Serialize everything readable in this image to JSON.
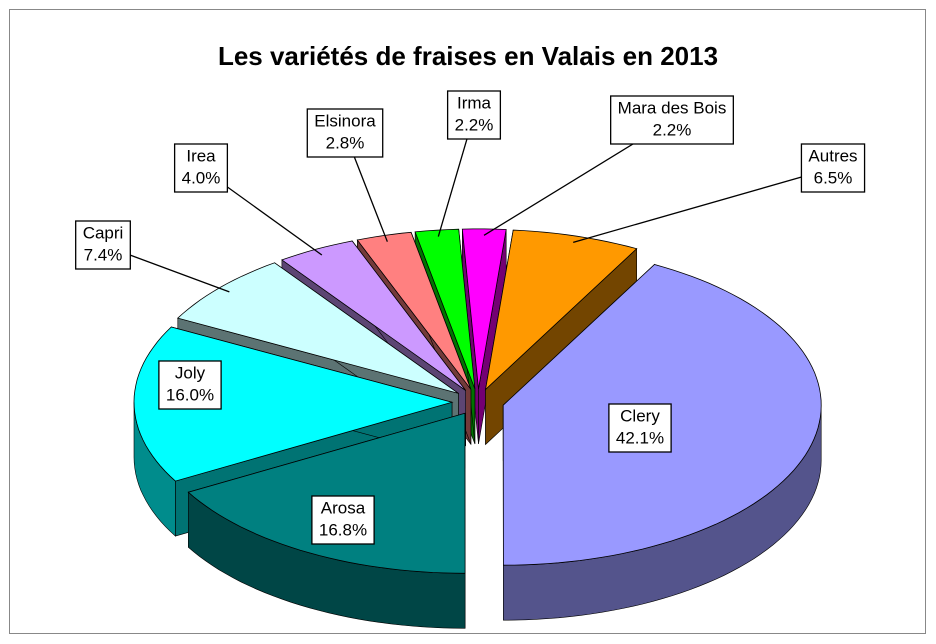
{
  "chart_data": {
    "type": "pie",
    "title": "Les variétés de fraises en Valais en 2013",
    "categories": [
      "Clery",
      "Arosa",
      "Joly",
      "Capri",
      "Irea",
      "Elsinora",
      "Irma",
      "Mara des Bois",
      "Autres"
    ],
    "values": [
      42.1,
      16.8,
      16.0,
      7.4,
      4.0,
      2.8,
      2.2,
      2.2,
      6.5
    ],
    "value_labels": [
      "42.1%",
      "16.8%",
      "16.0%",
      "7.4%",
      "4.0%",
      "2.8%",
      "2.2%",
      "2.2%",
      "6.5%"
    ],
    "colors": [
      "#9999ff",
      "#008080",
      "#00ffff",
      "#ccffff",
      "#cc99ff",
      "#ff8080",
      "#00ff00",
      "#ff00ff",
      "#ff9900"
    ]
  }
}
